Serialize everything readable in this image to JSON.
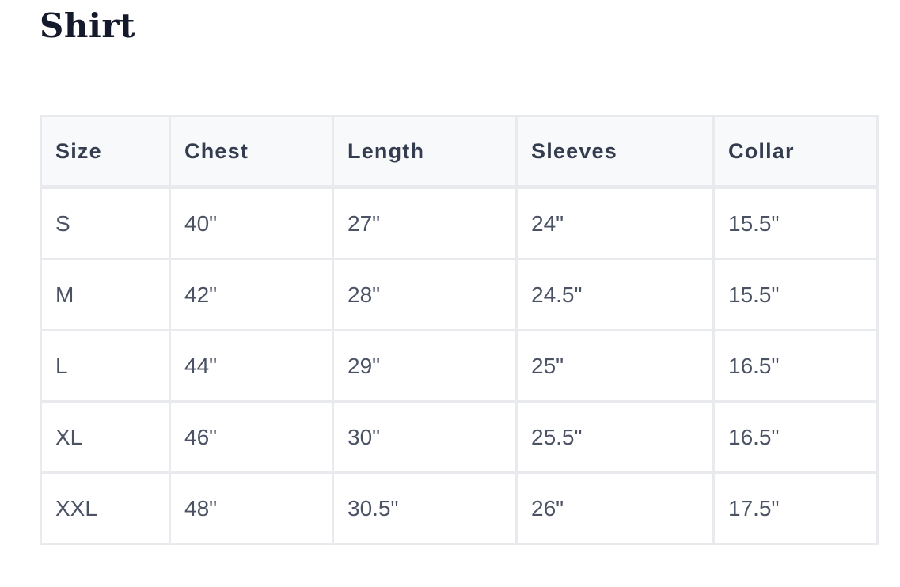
{
  "title": "Shirt",
  "table": {
    "headers": [
      "Size",
      "Chest",
      "Length",
      "Sleeves",
      "Collar"
    ],
    "rows": [
      [
        "S",
        "40\"",
        "27\"",
        "24\"",
        "15.5\""
      ],
      [
        "M",
        "42\"",
        "28\"",
        "24.5\"",
        "15.5\""
      ],
      [
        "L",
        "44\"",
        "29\"",
        "25\"",
        "16.5\""
      ],
      [
        "XL",
        "46\"",
        "30\"",
        "25.5\"",
        "16.5\""
      ],
      [
        "XXL",
        "48\"",
        "30.5\"",
        "26\"",
        "17.5\""
      ]
    ]
  }
}
